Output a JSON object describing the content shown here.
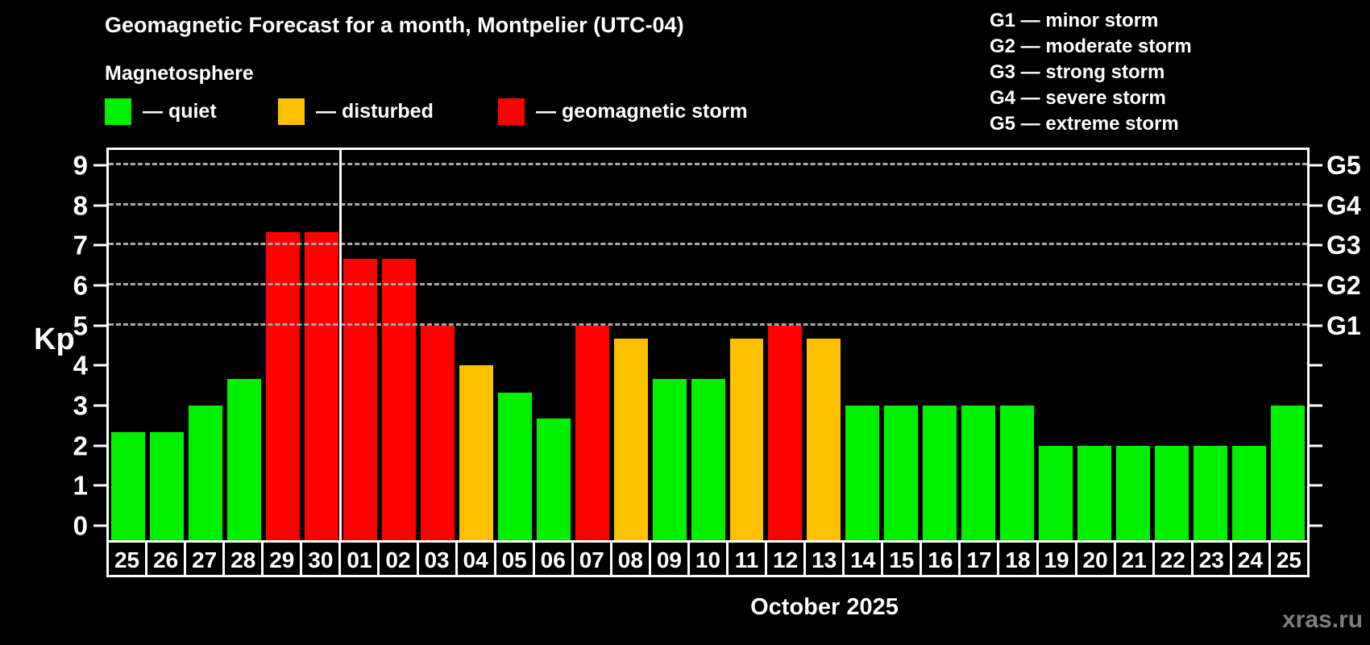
{
  "header": {
    "title": "Geomagnetic Forecast for a month, Montpelier (UTC-04)",
    "subtitle": "Magnetosphere"
  },
  "legend": {
    "items": [
      {
        "key": "quiet",
        "label": "— quiet",
        "color": "#00f000",
        "x": 130
      },
      {
        "key": "disturbed",
        "label": "— disturbed",
        "color": "#ffc000",
        "x": 345
      },
      {
        "key": "storm",
        "label": "— geomagnetic storm",
        "color": "#ff0000",
        "x": 618
      }
    ]
  },
  "g_scale_legend": {
    "items": [
      "G1 — minor storm",
      "G2 — moderate storm",
      "G3 — strong storm",
      "G4 — severe storm",
      "G5 — extreme storm"
    ]
  },
  "watermark": "xras.ru",
  "chart_data": {
    "type": "bar",
    "title": "Geomagnetic Forecast for a month, Montpelier (UTC-04)",
    "xlabel": "October 2025",
    "ylabel": "Kp",
    "categories": [
      "25",
      "26",
      "27",
      "28",
      "29",
      "30",
      "01",
      "02",
      "03",
      "04",
      "05",
      "06",
      "07",
      "08",
      "09",
      "10",
      "11",
      "12",
      "13",
      "14",
      "15",
      "16",
      "17",
      "18",
      "19",
      "20",
      "21",
      "22",
      "23",
      "24",
      "25"
    ],
    "values": [
      2.33,
      2.33,
      3,
      3.67,
      7.33,
      7.33,
      6.67,
      6.67,
      5,
      4,
      3.33,
      2.67,
      5,
      4.67,
      3.67,
      3.67,
      4.67,
      5,
      4.67,
      3,
      3,
      3,
      3,
      3,
      2,
      2,
      2,
      2,
      2,
      2,
      3
    ],
    "statuses": [
      "quiet",
      "quiet",
      "quiet",
      "quiet",
      "storm",
      "storm",
      "storm",
      "storm",
      "storm",
      "disturbed",
      "quiet",
      "quiet",
      "storm",
      "disturbed",
      "quiet",
      "quiet",
      "disturbed",
      "storm",
      "disturbed",
      "quiet",
      "quiet",
      "quiet",
      "quiet",
      "quiet",
      "quiet",
      "quiet",
      "quiet",
      "quiet",
      "quiet",
      "quiet",
      "quiet"
    ],
    "status_colors": {
      "quiet": "#00f000",
      "disturbed": "#ffc000",
      "storm": "#ff0000"
    },
    "ylim": [
      -0.36,
      9.38
    ],
    "y_ticks": [
      0,
      1,
      2,
      3,
      4,
      5,
      6,
      7,
      8,
      9
    ],
    "gridline_kp": [
      5,
      6,
      7,
      8,
      9
    ],
    "right_axis_labels": [
      {
        "text": "G1",
        "kp": 5
      },
      {
        "text": "G2",
        "kp": 6
      },
      {
        "text": "G3",
        "kp": 7
      },
      {
        "text": "G4",
        "kp": 8
      },
      {
        "text": "G5",
        "kp": 9
      }
    ],
    "grid": "dashed horizontal, G-levels only",
    "legend_position": "top-left",
    "month_separator_after_index": 5
  }
}
